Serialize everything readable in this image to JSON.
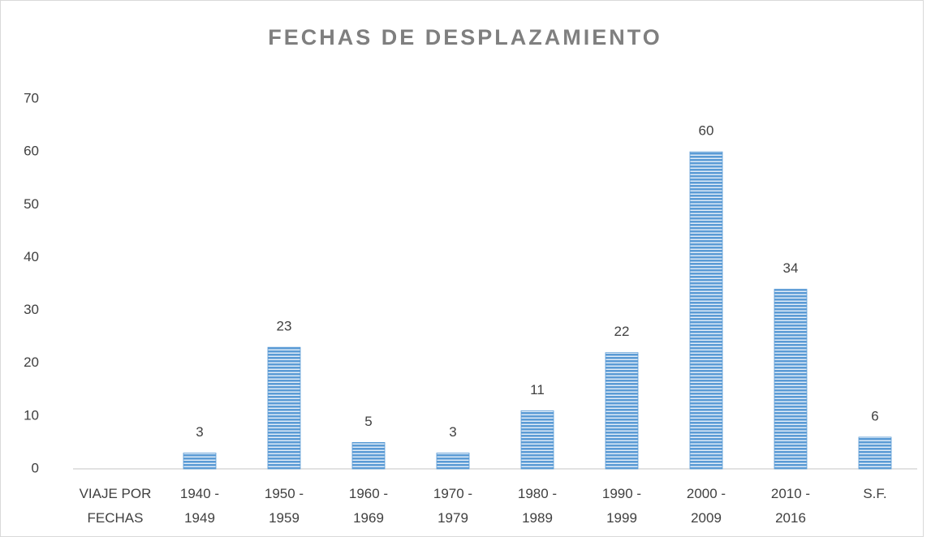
{
  "chart_data": {
    "type": "bar",
    "title": "FECHAS DE DESPLAZAMIENTO",
    "categories": [
      "VIAJE POR\nFECHAS",
      "1940 -\n1949",
      "1950 -\n1959",
      "1960 -\n1969",
      "1970 -\n1979",
      "1980 -\n1989",
      "1990 -\n1999",
      "2000 -\n2009",
      "2010 -\n2016",
      "S.F."
    ],
    "values": [
      null,
      3,
      23,
      5,
      3,
      11,
      22,
      60,
      34,
      6
    ],
    "color": "#5b9bd5",
    "ylim": [
      0,
      70
    ],
    "yticks": [
      0,
      10,
      20,
      30,
      40,
      50,
      60,
      70
    ],
    "grid": false
  }
}
